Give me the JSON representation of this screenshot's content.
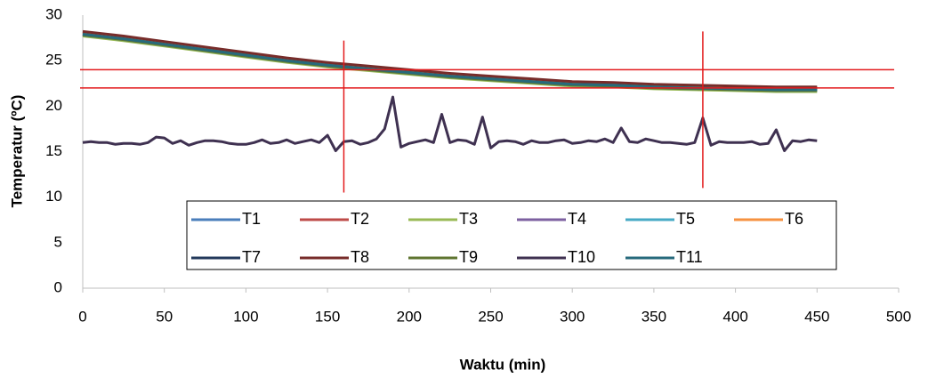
{
  "chart_data": {
    "type": "line",
    "xlabel": "Waktu (min)",
    "ylabel": "Temperatur (ºC)",
    "xlim": [
      0,
      500
    ],
    "xticks": [
      0,
      50,
      100,
      150,
      200,
      250,
      300,
      350,
      400,
      450,
      500
    ],
    "ylim": [
      0,
      30
    ],
    "yticks": [
      0,
      5,
      10,
      15,
      20,
      25,
      30
    ],
    "grid": false,
    "x": [
      0,
      25,
      50,
      75,
      100,
      125,
      150,
      175,
      200,
      225,
      250,
      275,
      300,
      325,
      350,
      375,
      400,
      425,
      450
    ],
    "series": [
      {
        "name": "T1",
        "color": "#4a7ebb",
        "values": [
          27.9,
          27.4,
          26.8,
          26.2,
          25.6,
          25.0,
          24.5,
          24.1,
          23.7,
          23.3,
          23.0,
          22.7,
          22.4,
          22.3,
          22.1,
          22.0,
          21.9,
          21.8,
          21.8
        ]
      },
      {
        "name": "T2",
        "color": "#be4b48",
        "values": [
          28.1,
          27.6,
          27.0,
          26.4,
          25.8,
          25.2,
          24.7,
          24.3,
          23.9,
          23.5,
          23.2,
          22.9,
          22.6,
          22.5,
          22.3,
          22.2,
          22.1,
          22.0,
          22.0
        ]
      },
      {
        "name": "T3",
        "color": "#98b954",
        "values": [
          27.7,
          27.2,
          26.6,
          26.0,
          25.4,
          24.8,
          24.3,
          23.9,
          23.5,
          23.1,
          22.8,
          22.5,
          22.2,
          22.1,
          21.9,
          21.8,
          21.7,
          21.6,
          21.6
        ]
      },
      {
        "name": "T4",
        "color": "#7d60a0",
        "values": [
          28.0,
          27.5,
          26.9,
          26.3,
          25.7,
          25.1,
          24.6,
          24.2,
          23.8,
          23.4,
          23.1,
          22.8,
          22.5,
          22.4,
          22.2,
          22.1,
          22.0,
          21.9,
          21.9
        ]
      },
      {
        "name": "T5",
        "color": "#46aac5",
        "values": [
          27.8,
          27.3,
          26.7,
          26.1,
          25.5,
          24.9,
          24.4,
          24.0,
          23.6,
          23.2,
          22.9,
          22.6,
          22.3,
          22.2,
          22.0,
          21.9,
          21.8,
          21.7,
          21.7
        ]
      },
      {
        "name": "T6",
        "color": "#f69240",
        "values": [
          28.1,
          27.6,
          27.0,
          26.4,
          25.8,
          25.2,
          24.7,
          24.3,
          23.9,
          23.5,
          23.2,
          22.9,
          22.6,
          22.5,
          22.3,
          22.2,
          22.1,
          22.0,
          22.0
        ]
      },
      {
        "name": "T7",
        "color": "#23395b",
        "values": [
          27.9,
          27.4,
          26.8,
          26.2,
          25.6,
          25.0,
          24.5,
          24.1,
          23.7,
          23.3,
          23.0,
          22.7,
          22.4,
          22.3,
          22.1,
          22.0,
          21.9,
          21.8,
          21.8
        ]
      },
      {
        "name": "T8",
        "color": "#772c2a",
        "values": [
          28.2,
          27.7,
          27.1,
          26.5,
          25.9,
          25.3,
          24.8,
          24.4,
          24.0,
          23.6,
          23.3,
          23.0,
          22.7,
          22.6,
          22.4,
          22.3,
          22.2,
          22.1,
          22.1
        ]
      },
      {
        "name": "T9",
        "color": "#5f7530",
        "values": [
          27.8,
          27.3,
          26.7,
          26.1,
          25.5,
          24.9,
          24.4,
          24.0,
          23.6,
          23.2,
          22.9,
          22.6,
          22.3,
          22.2,
          22.0,
          21.9,
          21.8,
          21.7,
          21.7
        ]
      },
      {
        "name": "T10",
        "color": "#3f3151",
        "x": [
          0,
          5,
          10,
          15,
          20,
          25,
          30,
          35,
          40,
          45,
          50,
          55,
          60,
          65,
          70,
          75,
          80,
          85,
          90,
          95,
          100,
          105,
          110,
          115,
          120,
          125,
          130,
          135,
          140,
          145,
          150,
          155,
          160,
          165,
          170,
          175,
          180,
          185,
          190,
          195,
          200,
          205,
          210,
          215,
          220,
          225,
          230,
          235,
          240,
          245,
          250,
          255,
          260,
          265,
          270,
          275,
          280,
          285,
          290,
          295,
          300,
          305,
          310,
          315,
          320,
          325,
          330,
          335,
          340,
          345,
          350,
          355,
          360,
          365,
          370,
          375,
          380,
          385,
          390,
          395,
          400,
          405,
          410,
          415,
          420,
          425,
          430,
          435,
          440,
          445,
          450
        ],
        "values": [
          16.0,
          16.1,
          16.0,
          16.0,
          15.8,
          15.9,
          15.9,
          15.8,
          16.0,
          16.6,
          16.5,
          15.9,
          16.2,
          15.7,
          16.0,
          16.2,
          16.2,
          16.1,
          15.9,
          15.8,
          15.8,
          16.0,
          16.3,
          15.9,
          16.0,
          16.3,
          15.9,
          16.1,
          16.3,
          16.0,
          16.8,
          15.1,
          16.1,
          16.2,
          15.8,
          16.0,
          16.4,
          17.5,
          21.0,
          15.5,
          15.9,
          16.1,
          16.3,
          16.0,
          19.1,
          16.0,
          16.3,
          16.2,
          15.8,
          18.8,
          15.4,
          16.1,
          16.2,
          16.1,
          15.8,
          16.2,
          16.0,
          16.0,
          16.2,
          16.3,
          15.9,
          16.0,
          16.2,
          16.1,
          16.4,
          16.0,
          17.6,
          16.1,
          16.0,
          16.4,
          16.2,
          16.0,
          16.0,
          15.9,
          15.8,
          16.0,
          18.7,
          15.7,
          16.1,
          16.0,
          16.0,
          16.0,
          16.1,
          15.8,
          15.9,
          17.4,
          15.1,
          16.2,
          16.1,
          16.3,
          16.2
        ]
      },
      {
        "name": "T11",
        "color": "#276a7c",
        "values": [
          27.9,
          27.4,
          26.8,
          26.2,
          25.6,
          25.0,
          24.5,
          24.1,
          23.7,
          23.3,
          23.0,
          22.7,
          22.4,
          22.3,
          22.1,
          22.0,
          21.9,
          21.8,
          21.8
        ]
      }
    ],
    "reference_lines": {
      "color": "#e31a1c",
      "horizontal": [
        24,
        22
      ],
      "vertical": [
        {
          "x": 160,
          "from": 10.5,
          "to": 27.2
        },
        {
          "x": 380,
          "from": 11,
          "to": 28.2
        }
      ]
    }
  }
}
